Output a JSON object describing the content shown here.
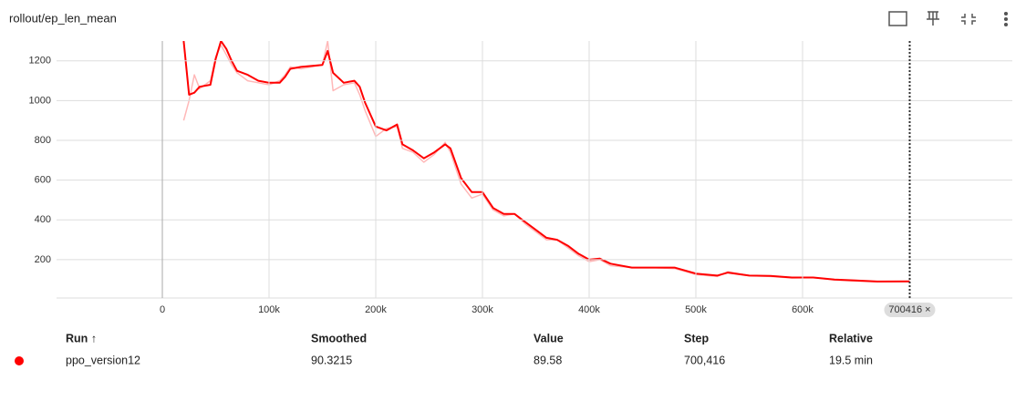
{
  "header": {
    "title": "rollout/ep_len_mean"
  },
  "chart_data": {
    "type": "line",
    "x": [
      20000,
      25000,
      30000,
      35000,
      45000,
      50000,
      55000,
      60000,
      65000,
      70000,
      80000,
      90000,
      100000,
      110000,
      115000,
      120000,
      130000,
      150000,
      155000,
      160000,
      170000,
      180000,
      185000,
      190000,
      200000,
      210000,
      220000,
      225000,
      235000,
      245000,
      255000,
      265000,
      270000,
      280000,
      290000,
      300000,
      310000,
      320000,
      330000,
      340000,
      350000,
      360000,
      370000,
      380000,
      390000,
      400000,
      410000,
      420000,
      440000,
      460000,
      480000,
      500000,
      520000,
      530000,
      550000,
      570000,
      590000,
      610000,
      630000,
      650000,
      670000,
      700416
    ],
    "series": [
      {
        "name": "ppo_version12",
        "color": "#ffb8b8",
        "values": [
          900,
          1000,
          1130,
          1060,
          1100,
          1220,
          1280,
          1230,
          1180,
          1140,
          1100,
          1090,
          1080,
          1100,
          1130,
          1170,
          1160,
          1180,
          1300,
          1050,
          1080,
          1090,
          1030,
          950,
          820,
          860,
          870,
          760,
          740,
          690,
          730,
          790,
          740,
          580,
          510,
          530,
          450,
          420,
          430,
          380,
          340,
          300,
          300,
          260,
          220,
          190,
          200,
          170,
          160,
          160,
          155,
          125,
          115,
          140,
          120,
          115,
          108,
          110,
          98,
          92,
          88,
          89.58
        ]
      },
      {
        "name": "ppo_version12",
        "color": "#ff0000",
        "values": [
          1300,
          1030,
          1040,
          1070,
          1080,
          1210,
          1300,
          1260,
          1200,
          1150,
          1130,
          1100,
          1090,
          1090,
          1120,
          1160,
          1170,
          1180,
          1250,
          1140,
          1090,
          1100,
          1070,
          990,
          870,
          850,
          880,
          780,
          750,
          710,
          740,
          780,
          760,
          610,
          540,
          540,
          460,
          430,
          430,
          390,
          350,
          310,
          300,
          270,
          230,
          200,
          205,
          180,
          160,
          160,
          160,
          130,
          120,
          135,
          120,
          118,
          110,
          110,
          100,
          95,
          90,
          90.3215
        ]
      }
    ],
    "xlim": [
      -100000,
      800000
    ],
    "ylim": [
      7,
      1300
    ],
    "xticks": [
      {
        "value": 0,
        "label": "0"
      },
      {
        "value": 100000,
        "label": "100k"
      },
      {
        "value": 200000,
        "label": "200k"
      },
      {
        "value": 300000,
        "label": "300k"
      },
      {
        "value": 400000,
        "label": "400k"
      },
      {
        "value": 500000,
        "label": "500k"
      },
      {
        "value": 600000,
        "label": "600k"
      }
    ],
    "yticks": [
      200,
      400,
      600,
      800,
      1000,
      1200
    ],
    "grid": true,
    "cursor": {
      "value": 700416,
      "label": "700416 ×"
    }
  },
  "table": {
    "header": [
      "Run ↑",
      "Smoothed",
      "Value",
      "Step",
      "Relative"
    ],
    "rows": [
      [
        "ppo_version12",
        "90.3215",
        "89.58",
        "700,416",
        "19.5 min"
      ]
    ]
  }
}
